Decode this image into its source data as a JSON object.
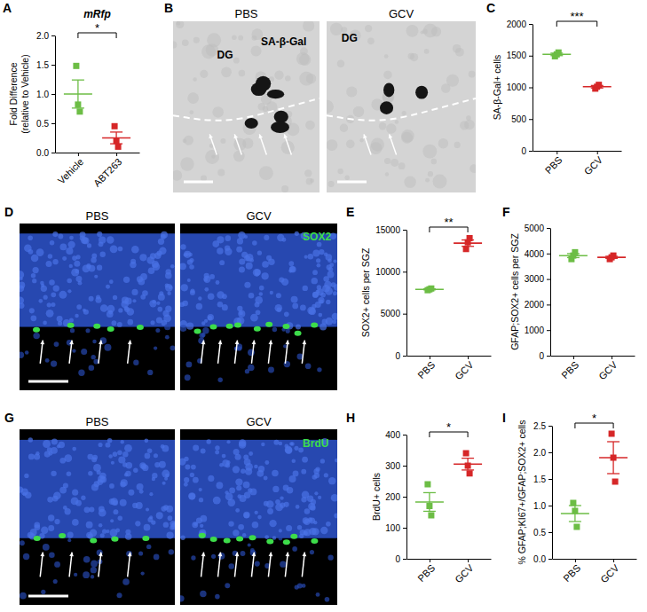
{
  "chart_data": [
    {
      "panel": "A",
      "type": "dot",
      "title": "mRfp",
      "ylabel": "Fold Difference",
      "ylabel2": "(relative to Vehicle)",
      "categories": [
        "Vehicle",
        "ABT263"
      ],
      "colors": [
        "#6cbd45",
        "#d62728"
      ],
      "points": [
        [
          1.48,
          0.82,
          0.7
        ],
        [
          0.45,
          0.2,
          0.1
        ]
      ],
      "means": [
        1.0,
        0.25
      ],
      "errors": [
        0.24,
        0.1
      ],
      "ylim": [
        0,
        2
      ],
      "yticks": [
        {
          "value": 0,
          "label": "0.0"
        },
        {
          "value": 0.5,
          "label": "0.5"
        },
        {
          "value": 1,
          "label": "1.0"
        },
        {
          "value": 1.5,
          "label": "1.5"
        },
        {
          "value": 2,
          "label": "2.0"
        }
      ],
      "significance": "*"
    },
    {
      "panel": "C",
      "type": "dot",
      "ylabel": "SA-β-Gal+ cells",
      "categories": [
        "PBS",
        "GCV"
      ],
      "colors": [
        "#6cbd45",
        "#d62728"
      ],
      "points": [
        [
          1490,
          1520,
          1550
        ],
        [
          980,
          1010,
          1040
        ]
      ],
      "means": [
        1520,
        1010
      ],
      "errors": [
        20,
        20
      ],
      "ylim": [
        0,
        2000
      ],
      "yticks": [
        0,
        500,
        1000,
        1500,
        2000
      ],
      "significance": "***"
    },
    {
      "panel": "E",
      "type": "dot",
      "ylabel": "SOX2+ cells per SGZ",
      "categories": [
        "PBS",
        "GCV"
      ],
      "colors": [
        "#6cbd45",
        "#d62728"
      ],
      "points": [
        [
          7800,
          7900,
          8000
        ],
        [
          12700,
          13500,
          14000
        ]
      ],
      "means": [
        7900,
        13400
      ],
      "errors": [
        60,
        380
      ],
      "ylim": [
        0,
        15000
      ],
      "yticks": [
        0,
        5000,
        10000,
        15000
      ],
      "significance": "**"
    },
    {
      "panel": "F",
      "type": "dot",
      "ylabel": "GFAP;SOX2+ cells per SGZ",
      "categories": [
        "PBS",
        "GCV"
      ],
      "colors": [
        "#6cbd45",
        "#d62728"
      ],
      "points": [
        [
          3780,
          3920,
          4050
        ],
        [
          3780,
          3850,
          3920
        ]
      ],
      "means": [
        3917,
        3850
      ],
      "errors": [
        78,
        40
      ],
      "ylim": [
        0,
        5000
      ],
      "yticks": [
        0,
        1000,
        2000,
        3000,
        4000,
        5000
      ]
    },
    {
      "panel": "H",
      "type": "dot",
      "ylabel": "BrdU+ cells",
      "categories": [
        "PBS",
        "GCV"
      ],
      "colors": [
        "#6cbd45",
        "#d62728"
      ],
      "points": [
        [
          240,
          170,
          140
        ],
        [
          340,
          300,
          275
        ]
      ],
      "means": [
        183,
        305
      ],
      "errors": [
        30,
        19
      ],
      "ylim": [
        0,
        400
      ],
      "yticks": [
        0,
        100,
        200,
        300,
        400
      ],
      "significance": "*"
    },
    {
      "panel": "I",
      "type": "dot",
      "ylabel": "% GFAP;KI67+/GFAP;SOX2+ cells",
      "categories": [
        "PBS",
        "GCV"
      ],
      "colors": [
        "#6cbd45",
        "#d62728"
      ],
      "points": [
        [
          1.05,
          0.9,
          0.6
        ],
        [
          2.35,
          1.9,
          1.45
        ]
      ],
      "means": [
        0.85,
        1.9
      ],
      "errors": [
        0.15,
        0.3
      ],
      "ylim": [
        0,
        2.5
      ],
      "yticks": [
        {
          "value": 0,
          "label": "0.0"
        },
        {
          "value": 0.5,
          "label": "0.5"
        },
        {
          "value": 1,
          "label": "1.0"
        },
        {
          "value": 1.5,
          "label": "1.5"
        },
        {
          "value": 2,
          "label": "2.0"
        },
        {
          "value": 2.5,
          "label": "2.5"
        }
      ],
      "significance": "*"
    }
  ],
  "image_panels": [
    {
      "label": "B",
      "images": [
        {
          "title": "PBS",
          "texts": [
            "SA-β-Gal",
            "DG"
          ]
        },
        {
          "title": "GCV",
          "texts": [
            "DG"
          ]
        }
      ]
    },
    {
      "label": "D",
      "images": [
        {
          "title": "PBS",
          "texts": []
        },
        {
          "title": "GCV",
          "texts": [
            "SOX2"
          ]
        }
      ]
    },
    {
      "label": "G",
      "images": [
        {
          "title": "PBS",
          "texts": []
        },
        {
          "title": "GCV",
          "texts": [
            "BrdU"
          ]
        }
      ]
    }
  ]
}
